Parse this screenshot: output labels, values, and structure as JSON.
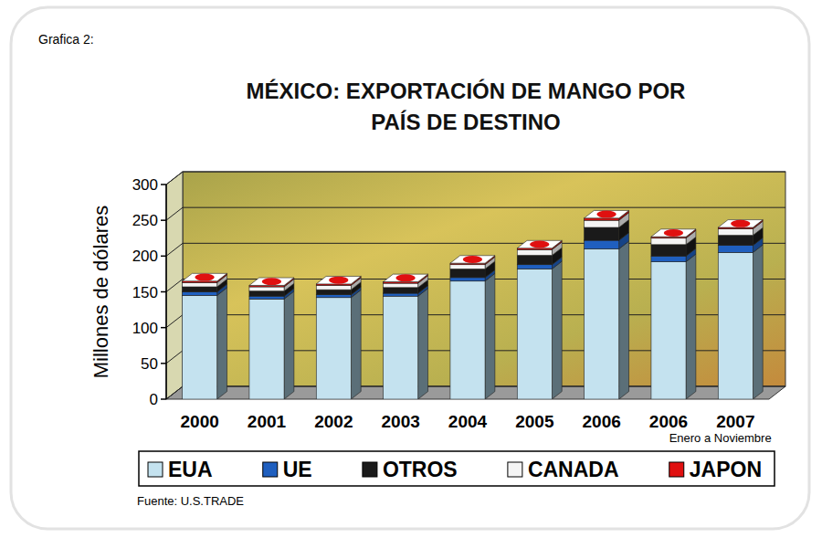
{
  "chart_data": {
    "type": "bar",
    "stacked": true,
    "label": "Grafica 2:",
    "title": "MÉXICO: EXPORTACIÓN DE MANGO POR PAÍS DE DESTINO",
    "y_label": "Millones de dólares",
    "source": "Fuente: U.S.TRADE",
    "annotation": "Enero a Noviembre",
    "categories": [
      "2000",
      "2001",
      "2002",
      "2003",
      "2004",
      "2005",
      "2006",
      "2006",
      "2007"
    ],
    "series": [
      {
        "name": "EUA",
        "color": "#c4e2ef",
        "values": [
          145,
          140,
          142,
          144,
          165,
          182,
          210,
          192,
          205
        ]
      },
      {
        "name": "UE",
        "color": "#1f5fbf",
        "values": [
          5,
          4,
          4,
          4,
          5,
          6,
          12,
          8,
          10
        ]
      },
      {
        "name": "OTROS",
        "color": "#1a1a1a",
        "values": [
          7,
          7,
          7,
          8,
          12,
          13,
          18,
          16,
          14
        ]
      },
      {
        "name": "CANADA",
        "color": "#f4f4f4",
        "values": [
          6,
          6,
          6,
          6,
          6,
          8,
          10,
          9,
          9
        ]
      },
      {
        "name": "JAPON",
        "color": "#e01010",
        "values": [
          2,
          2,
          2,
          2,
          2,
          2,
          3,
          2,
          2
        ]
      }
    ],
    "ylim": [
      0,
      300
    ],
    "yticks": [
      0,
      50,
      100,
      150,
      200,
      250,
      300
    ],
    "grid": true,
    "legend": "bottom"
  }
}
